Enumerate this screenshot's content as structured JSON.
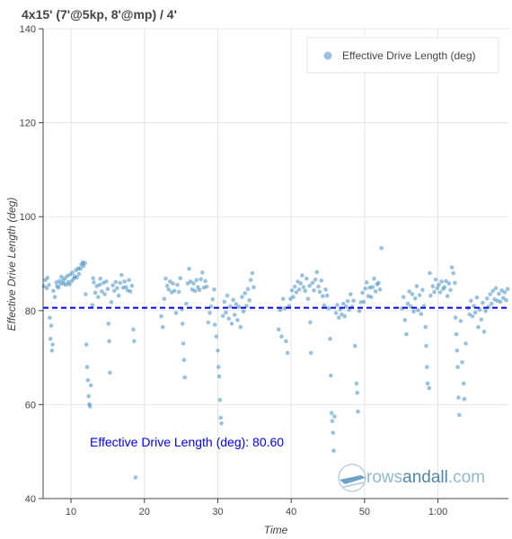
{
  "chart_data": {
    "type": "scatter",
    "title": "4x15' (7'@5kp, 8'@mp) / 4'",
    "xlabel": "Time",
    "ylabel": "Effective Drive Length (deg)",
    "xlim": [
      6.2,
      69.6
    ],
    "ylim": [
      40,
      140
    ],
    "xticks": [
      10,
      20,
      30,
      40,
      50,
      60
    ],
    "xtick_labels": [
      "10",
      "20",
      "30",
      "40",
      "50",
      "1:00"
    ],
    "yticks": [
      40,
      60,
      80,
      100,
      120,
      140
    ],
    "ytick_labels": [
      "40",
      "60",
      "80",
      "100",
      "120",
      "140"
    ],
    "grid": true,
    "legend_position": "top-right",
    "mean_line": {
      "value": 80.6,
      "label": "Effective Drive Length (deg):  80.60",
      "color": "#0000ff"
    },
    "series": [
      {
        "name": "Effective Drive Length (deg)",
        "color": "#1f77b4",
        "points": [
          [
            6.3,
            85.2
          ],
          [
            6.5,
            86.5
          ],
          [
            6.7,
            84.8
          ],
          [
            6.8,
            87.0
          ],
          [
            7.0,
            85.5
          ],
          [
            7.1,
            78.5
          ],
          [
            7.2,
            74.0
          ],
          [
            7.3,
            76.8
          ],
          [
            7.4,
            71.5
          ],
          [
            7.5,
            72.8
          ],
          [
            7.6,
            84.2
          ],
          [
            7.8,
            82.9
          ],
          [
            8.0,
            86.0
          ],
          [
            8.1,
            85.2
          ],
          [
            8.3,
            84.9
          ],
          [
            8.4,
            86.3
          ],
          [
            8.6,
            85.7
          ],
          [
            8.7,
            87.2
          ],
          [
            8.9,
            86.4
          ],
          [
            9.0,
            85.8
          ],
          [
            9.2,
            86.9
          ],
          [
            9.3,
            85.5
          ],
          [
            9.5,
            87.4
          ],
          [
            9.6,
            86.1
          ],
          [
            9.8,
            85.6
          ],
          [
            9.9,
            87.7
          ],
          [
            10.1,
            86.3
          ],
          [
            10.2,
            88.1
          ],
          [
            10.4,
            86.8
          ],
          [
            10.5,
            87.3
          ],
          [
            10.7,
            88.6
          ],
          [
            10.8,
            87.1
          ],
          [
            11.0,
            89.0
          ],
          [
            11.1,
            87.8
          ],
          [
            11.3,
            88.9
          ],
          [
            11.4,
            89.8
          ],
          [
            11.6,
            90.3
          ],
          [
            11.7,
            89.5
          ],
          [
            11.9,
            90.1
          ],
          [
            12.0,
            83.5
          ],
          [
            12.1,
            72.8
          ],
          [
            12.2,
            68.0
          ],
          [
            12.3,
            65.2
          ],
          [
            12.4,
            61.8
          ],
          [
            12.5,
            60.1
          ],
          [
            12.6,
            59.6
          ],
          [
            12.7,
            64.1
          ],
          [
            12.9,
            81.2
          ],
          [
            13.0,
            86.9
          ],
          [
            13.1,
            86.0
          ],
          [
            13.3,
            83.8
          ],
          [
            13.5,
            85.2
          ],
          [
            13.7,
            82.9
          ],
          [
            13.9,
            85.5
          ],
          [
            14.0,
            86.8
          ],
          [
            14.2,
            84.1
          ],
          [
            14.4,
            85.9
          ],
          [
            14.6,
            83.5
          ],
          [
            14.8,
            86.2
          ],
          [
            15.0,
            84.6
          ],
          [
            15.1,
            77.2
          ],
          [
            15.2,
            73.5
          ],
          [
            15.3,
            66.8
          ],
          [
            15.5,
            81.8
          ],
          [
            15.7,
            85.4
          ],
          [
            15.9,
            84.2
          ],
          [
            16.1,
            86.1
          ],
          [
            16.3,
            84.8
          ],
          [
            16.5,
            83.2
          ],
          [
            16.7,
            85.9
          ],
          [
            16.9,
            87.6
          ],
          [
            17.1,
            84.9
          ],
          [
            17.3,
            86.2
          ],
          [
            17.5,
            85.0
          ],
          [
            17.7,
            84.3
          ],
          [
            17.9,
            86.5
          ],
          [
            18.1,
            84.1
          ],
          [
            18.3,
            85.3
          ],
          [
            18.5,
            76.0
          ],
          [
            18.6,
            73.5
          ],
          [
            18.8,
            44.5
          ],
          [
            22.3,
            78.8
          ],
          [
            22.5,
            76.5
          ],
          [
            22.7,
            82.5
          ],
          [
            22.9,
            86.8
          ],
          [
            23.1,
            85.3
          ],
          [
            23.3,
            84.5
          ],
          [
            23.5,
            86.2
          ],
          [
            23.7,
            83.9
          ],
          [
            23.9,
            85.8
          ],
          [
            24.1,
            84.2
          ],
          [
            24.3,
            79.5
          ],
          [
            24.5,
            85.5
          ],
          [
            24.7,
            84.0
          ],
          [
            24.9,
            86.9
          ],
          [
            25.1,
            80.3
          ],
          [
            25.2,
            77.2
          ],
          [
            25.3,
            73.0
          ],
          [
            25.4,
            69.5
          ],
          [
            25.5,
            65.8
          ],
          [
            25.7,
            81.5
          ],
          [
            25.9,
            85.8
          ],
          [
            26.1,
            88.9
          ],
          [
            26.3,
            86.2
          ],
          [
            26.5,
            84.5
          ],
          [
            26.7,
            85.8
          ],
          [
            26.9,
            84.2
          ],
          [
            27.1,
            86.5
          ],
          [
            27.3,
            85.0
          ],
          [
            27.5,
            84.4
          ],
          [
            27.7,
            86.7
          ],
          [
            27.9,
            88.1
          ],
          [
            28.1,
            84.9
          ],
          [
            28.3,
            86.3
          ],
          [
            28.5,
            85.1
          ],
          [
            28.7,
            77.5
          ],
          [
            28.9,
            79.5
          ],
          [
            29.1,
            80.9
          ],
          [
            29.3,
            82.4
          ],
          [
            29.5,
            84.5
          ],
          [
            29.6,
            77.0
          ],
          [
            29.8,
            74.5
          ],
          [
            30.0,
            71.5
          ],
          [
            30.1,
            68.0
          ],
          [
            30.2,
            66.0
          ],
          [
            30.3,
            61.0
          ],
          [
            30.4,
            57.2
          ],
          [
            30.5,
            56.0
          ],
          [
            30.7,
            78.9
          ],
          [
            30.9,
            81.9
          ],
          [
            31.1,
            79.6
          ],
          [
            31.3,
            83.2
          ],
          [
            31.5,
            78.3
          ],
          [
            31.7,
            80.9
          ],
          [
            31.9,
            77.2
          ],
          [
            32.1,
            82.3
          ],
          [
            32.3,
            79.1
          ],
          [
            32.5,
            81.4
          ],
          [
            32.7,
            78.0
          ],
          [
            32.9,
            80.8
          ],
          [
            33.1,
            76.5
          ],
          [
            33.3,
            82.9
          ],
          [
            33.5,
            79.8
          ],
          [
            33.7,
            83.7
          ],
          [
            33.9,
            81.0
          ],
          [
            34.1,
            84.6
          ],
          [
            34.3,
            82.2
          ],
          [
            34.5,
            86.5
          ],
          [
            34.7,
            88.0
          ],
          [
            34.9,
            85.0
          ],
          [
            38.3,
            76.0
          ],
          [
            38.5,
            80.1
          ],
          [
            38.7,
            74.5
          ],
          [
            38.9,
            82.5
          ],
          [
            39.1,
            80.5
          ],
          [
            39.3,
            73.5
          ],
          [
            39.5,
            71.0
          ],
          [
            39.7,
            81.0
          ],
          [
            39.9,
            82.5
          ],
          [
            40.1,
            84.3
          ],
          [
            40.3,
            82.9
          ],
          [
            40.5,
            85.1
          ],
          [
            40.7,
            83.9
          ],
          [
            40.9,
            86.2
          ],
          [
            41.1,
            84.5
          ],
          [
            41.3,
            85.8
          ],
          [
            41.5,
            87.5
          ],
          [
            41.7,
            85.0
          ],
          [
            41.9,
            84.2
          ],
          [
            42.1,
            86.8
          ],
          [
            42.3,
            82.5
          ],
          [
            42.5,
            85.3
          ],
          [
            42.6,
            77.5
          ],
          [
            42.7,
            71.0
          ],
          [
            42.9,
            85.9
          ],
          [
            43.1,
            84.3
          ],
          [
            43.3,
            86.6
          ],
          [
            43.5,
            88.2
          ],
          [
            43.7,
            85.1
          ],
          [
            43.9,
            84.0
          ],
          [
            44.1,
            86.4
          ],
          [
            44.3,
            83.1
          ],
          [
            44.5,
            81.1
          ],
          [
            44.7,
            84.5
          ],
          [
            44.9,
            83.2
          ],
          [
            45.1,
            80.5
          ],
          [
            45.3,
            74.0
          ],
          [
            45.4,
            66.2
          ],
          [
            45.5,
            58.2
          ],
          [
            45.6,
            56.5
          ],
          [
            45.7,
            54.0
          ],
          [
            45.8,
            50.2
          ],
          [
            45.9,
            57.5
          ],
          [
            46.1,
            79.5
          ],
          [
            46.3,
            81.2
          ],
          [
            46.5,
            78.5
          ],
          [
            46.7,
            80.3
          ],
          [
            46.9,
            79.2
          ],
          [
            47.1,
            81.5
          ],
          [
            47.3,
            78.8
          ],
          [
            47.5,
            80.9
          ],
          [
            47.7,
            82.0
          ],
          [
            47.9,
            80.2
          ],
          [
            48.1,
            83.5
          ],
          [
            48.3,
            80.8
          ],
          [
            48.5,
            82.1
          ],
          [
            48.7,
            72.5
          ],
          [
            48.9,
            64.5
          ],
          [
            49.0,
            62.5
          ],
          [
            49.1,
            58.5
          ],
          [
            49.3,
            79.9
          ],
          [
            49.5,
            81.8
          ],
          [
            49.7,
            83.8
          ],
          [
            49.9,
            81.9
          ],
          [
            50.1,
            84.7
          ],
          [
            50.3,
            86.0
          ],
          [
            50.5,
            83.1
          ],
          [
            50.7,
            84.9
          ],
          [
            50.9,
            82.9
          ],
          [
            51.1,
            85.0
          ],
          [
            51.3,
            86.8
          ],
          [
            51.5,
            84.1
          ],
          [
            51.7,
            85.6
          ],
          [
            51.9,
            85.9
          ],
          [
            52.1,
            84.5
          ],
          [
            52.3,
            93.3
          ],
          [
            55.1,
            80.5
          ],
          [
            55.3,
            82.9
          ],
          [
            55.5,
            78.0
          ],
          [
            55.7,
            75.0
          ],
          [
            55.9,
            81.5
          ],
          [
            56.1,
            84.1
          ],
          [
            56.3,
            80.9
          ],
          [
            56.5,
            83.5
          ],
          [
            56.7,
            79.8
          ],
          [
            56.9,
            82.6
          ],
          [
            57.1,
            85.2
          ],
          [
            57.3,
            80.1
          ],
          [
            57.5,
            83.3
          ],
          [
            57.7,
            79.3
          ],
          [
            57.9,
            84.4
          ],
          [
            58.1,
            81.0
          ],
          [
            58.3,
            76.5
          ],
          [
            58.4,
            72.5
          ],
          [
            58.5,
            68.0
          ],
          [
            58.6,
            64.5
          ],
          [
            58.8,
            63.5
          ],
          [
            58.9,
            88.0
          ],
          [
            59.0,
            83.2
          ],
          [
            59.3,
            85.2
          ],
          [
            59.5,
            84.0
          ],
          [
            59.7,
            86.6
          ],
          [
            59.9,
            84.8
          ],
          [
            60.1,
            85.5
          ],
          [
            60.3,
            83.9
          ],
          [
            60.5,
            86.2
          ],
          [
            60.7,
            84.6
          ],
          [
            60.9,
            85.0
          ],
          [
            61.1,
            86.3
          ],
          [
            61.3,
            83.1
          ],
          [
            61.5,
            85.8
          ],
          [
            61.7,
            84.4
          ],
          [
            61.9,
            89.2
          ],
          [
            62.1,
            88.0
          ],
          [
            62.3,
            85.9
          ],
          [
            62.4,
            78.5
          ],
          [
            62.5,
            75.0
          ],
          [
            62.6,
            71.5
          ],
          [
            62.7,
            68.0
          ],
          [
            62.8,
            61.5
          ],
          [
            62.9,
            57.8
          ],
          [
            63.1,
            77.8
          ],
          [
            63.3,
            69.0
          ],
          [
            63.5,
            64.5
          ],
          [
            63.6,
            61.2
          ],
          [
            63.8,
            73.0
          ],
          [
            64.1,
            80.6
          ],
          [
            64.3,
            79.2
          ],
          [
            64.5,
            82.1
          ],
          [
            64.7,
            78.8
          ],
          [
            64.9,
            81.0
          ],
          [
            65.1,
            79.6
          ],
          [
            65.3,
            82.8
          ],
          [
            65.5,
            76.5
          ],
          [
            65.7,
            80.2
          ],
          [
            65.9,
            78.1
          ],
          [
            66.1,
            81.7
          ],
          [
            66.3,
            75.5
          ],
          [
            66.5,
            79.9
          ],
          [
            66.7,
            82.6
          ],
          [
            66.9,
            80.8
          ],
          [
            67.1,
            83.5
          ],
          [
            67.3,
            81.5
          ],
          [
            67.5,
            84.2
          ],
          [
            67.7,
            82.4
          ],
          [
            67.9,
            84.8
          ],
          [
            68.1,
            82.1
          ],
          [
            68.3,
            83.6
          ],
          [
            68.5,
            81.9
          ],
          [
            68.7,
            84.3
          ],
          [
            68.9,
            82.7
          ],
          [
            69.1,
            83.9
          ],
          [
            69.3,
            82.2
          ],
          [
            69.5,
            84.6
          ]
        ]
      }
    ]
  },
  "watermark": {
    "part1": "rows",
    "part2": "andall",
    "part3": ".com"
  }
}
